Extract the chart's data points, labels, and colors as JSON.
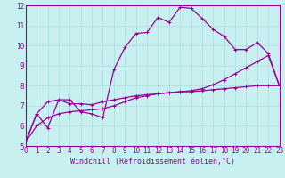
{
  "xlabel": "Windchill (Refroidissement éolien,°C)",
  "ylabel": "",
  "bg_color": "#c8f0f0",
  "line_color": "#990099",
  "grid_color": "#aadddd",
  "xlim": [
    0,
    23
  ],
  "ylim": [
    5,
    12
  ],
  "xticks": [
    0,
    1,
    2,
    3,
    4,
    5,
    6,
    7,
    8,
    9,
    10,
    11,
    12,
    13,
    14,
    15,
    16,
    17,
    18,
    19,
    20,
    21,
    22,
    23
  ],
  "yticks": [
    5,
    6,
    7,
    8,
    9,
    10,
    11,
    12
  ],
  "curve1_x": [
    0,
    1,
    2,
    3,
    4,
    5,
    6,
    7,
    8,
    9,
    10,
    11,
    12,
    13,
    14,
    15,
    16,
    17,
    18,
    19,
    20,
    21,
    22,
    23
  ],
  "curve1_y": [
    5.2,
    6.6,
    5.9,
    7.3,
    7.3,
    6.7,
    6.6,
    6.4,
    8.8,
    9.9,
    10.6,
    10.65,
    11.4,
    11.15,
    11.9,
    11.85,
    11.35,
    10.8,
    10.45,
    9.8,
    9.8,
    10.15,
    9.6,
    8.0
  ],
  "curve2_x": [
    0,
    1,
    2,
    3,
    4,
    5,
    6,
    7,
    8,
    9,
    10,
    11,
    12,
    13,
    14,
    15,
    16,
    17,
    18,
    19,
    20,
    21,
    22,
    23
  ],
  "curve2_y": [
    5.2,
    6.6,
    7.2,
    7.3,
    7.1,
    7.1,
    7.05,
    7.2,
    7.3,
    7.4,
    7.5,
    7.55,
    7.6,
    7.65,
    7.7,
    7.7,
    7.75,
    7.8,
    7.85,
    7.9,
    7.95,
    8.0,
    8.0,
    8.0
  ],
  "curve3_x": [
    0,
    1,
    2,
    3,
    4,
    5,
    6,
    7,
    8,
    9,
    10,
    11,
    12,
    13,
    14,
    15,
    16,
    17,
    18,
    19,
    20,
    21,
    22,
    23
  ],
  "curve3_y": [
    5.2,
    6.0,
    6.4,
    6.6,
    6.7,
    6.75,
    6.8,
    6.85,
    7.0,
    7.2,
    7.4,
    7.5,
    7.6,
    7.65,
    7.7,
    7.75,
    7.85,
    8.05,
    8.3,
    8.6,
    8.9,
    9.2,
    9.5,
    8.0
  ],
  "tick_fontsize": 5.5,
  "xlabel_fontsize": 6.0
}
